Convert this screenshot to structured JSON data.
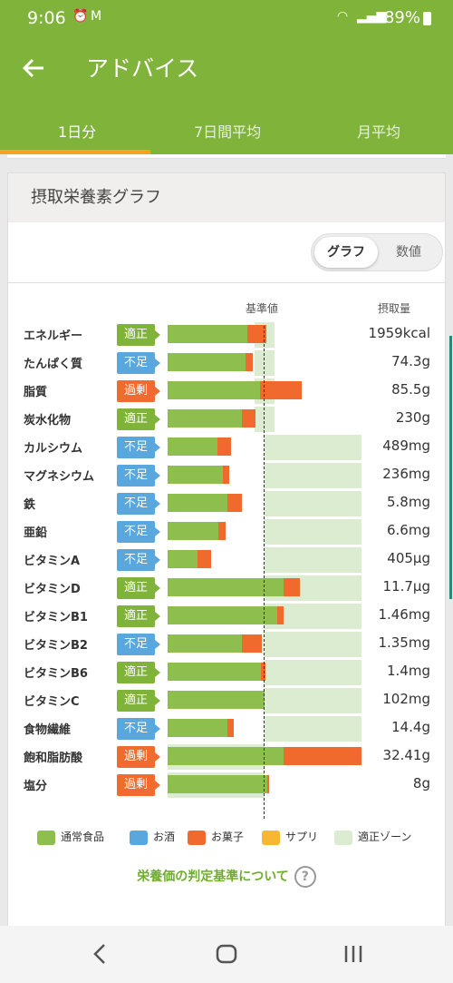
{
  "status": {
    "time": "9:06",
    "battery": "89%",
    "icons": [
      "alarm-icon",
      "gmail-icon",
      "wifi-icon",
      "signal-icon"
    ]
  },
  "appbar": {
    "title": "アドバイス",
    "tabs": [
      "1日分",
      "7日間平均",
      "月平均"
    ],
    "active_tab": 0
  },
  "card": {
    "title": "摂取栄養素グラフ",
    "toggle": {
      "graph": "グラフ",
      "numbers": "数値",
      "selected": "graph"
    },
    "col_ref": "基準値",
    "col_intake": "摂取量"
  },
  "badge_labels": {
    "ok": "適正",
    "low": "不足",
    "over": "過剰"
  },
  "nutrients": [
    {
      "name": "エネルギー",
      "status": "適正",
      "value": "1959kcal"
    },
    {
      "name": "たんぱく質",
      "status": "不足",
      "value": "74.3g"
    },
    {
      "name": "脂質",
      "status": "過剰",
      "value": "85.5g"
    },
    {
      "name": "炭水化物",
      "status": "適正",
      "value": "230g"
    },
    {
      "name": "カルシウム",
      "status": "不足",
      "value": "489mg"
    },
    {
      "name": "マグネシウム",
      "status": "不足",
      "value": "236mg"
    },
    {
      "name": "鉄",
      "status": "不足",
      "value": "5.8mg"
    },
    {
      "name": "亜鉛",
      "status": "不足",
      "value": "6.6mg"
    },
    {
      "name": "ビタミンA",
      "status": "不足",
      "value": "405μg"
    },
    {
      "name": "ビタミンD",
      "status": "適正",
      "value": "11.7μg"
    },
    {
      "name": "ビタミンB1",
      "status": "適正",
      "value": "1.46mg"
    },
    {
      "name": "ビタミンB2",
      "status": "不足",
      "value": "1.35mg"
    },
    {
      "name": "ビタミンB6",
      "status": "適正",
      "value": "1.4mg"
    },
    {
      "name": "ビタミンC",
      "status": "適正",
      "value": "102mg"
    },
    {
      "name": "食物繊維",
      "status": "不足",
      "value": "14.4g"
    },
    {
      "name": "飽和脂肪酸",
      "status": "過剰",
      "value": "32.41g"
    },
    {
      "name": "塩分",
      "status": "過剰",
      "value": "8g"
    }
  ],
  "legend": [
    {
      "label": "通常食品",
      "color": "#8ebf4e"
    },
    {
      "label": "お酒",
      "color": "#5aa7de"
    },
    {
      "label": "お菓子",
      "color": "#f06a2e"
    },
    {
      "label": "サプリ",
      "color": "#f7b731"
    },
    {
      "label": "適正ゾーン",
      "color": "#dcecd0"
    }
  ],
  "criteria_link": "栄養価の判定基準について",
  "help_icon": "?",
  "chart_data": {
    "type": "bar",
    "categories": [
      "エネルギー",
      "たんぱく質",
      "脂質",
      "炭水化物",
      "カルシウム",
      "マグネシウム",
      "鉄",
      "亜鉛",
      "ビタミンA",
      "ビタミンD",
      "ビタミンB1",
      "ビタミンB2",
      "ビタミンB6",
      "ビタミンC",
      "食物繊維",
      "飽和脂肪酸",
      "塩分"
    ],
    "series": [
      {
        "name": "通常食品",
        "values": [
          0.82,
          0.8,
          0.95,
          0.77,
          0.51,
          0.57,
          0.62,
          0.52,
          0.31,
          1.2,
          1.13,
          0.77,
          0.96,
          1.0,
          0.62,
          1.2,
          1.03
        ]
      },
      {
        "name": "お菓子",
        "values": [
          0.2,
          0.08,
          0.43,
          0.14,
          0.14,
          0.07,
          0.15,
          0.08,
          0.14,
          0.16,
          0.07,
          0.2,
          0.05,
          0.0,
          0.06,
          0.8,
          0.02
        ]
      }
    ],
    "ok_zone": [
      [
        0.9,
        1.1
      ],
      [
        0.9,
        1.1
      ],
      [
        0.9,
        1.1
      ],
      [
        0.9,
        1.1
      ],
      [
        1.0,
        2.0
      ],
      [
        1.0,
        2.0
      ],
      [
        1.0,
        2.0
      ],
      [
        1.0,
        2.0
      ],
      [
        1.0,
        2.0
      ],
      [
        1.0,
        2.0
      ],
      [
        1.0,
        2.0
      ],
      [
        1.0,
        2.0
      ],
      [
        1.0,
        2.0
      ],
      [
        1.0,
        2.0
      ],
      [
        1.0,
        2.0
      ],
      [
        0.0,
        1.0
      ],
      [
        0.0,
        1.0
      ]
    ],
    "reference_line": 1.0,
    "xlim": [
      0,
      2.0
    ]
  }
}
